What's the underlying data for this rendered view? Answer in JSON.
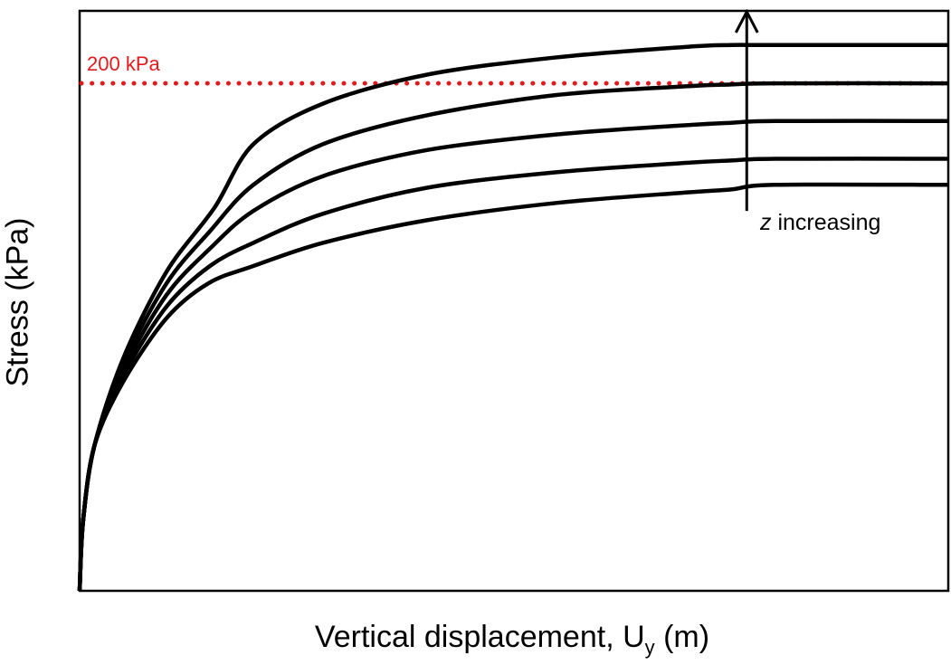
{
  "chart_data": {
    "type": "line",
    "title": "",
    "xlabel_main": "Vertical displacement, U",
    "xlabel_sub": "y",
    "xlabel_unit": " (m)",
    "ylabel": "Stress (kPa)",
    "xlim": [
      0,
      1
    ],
    "ylim": [
      0,
      1
    ],
    "grid": false,
    "legend": "none",
    "series_color": "#000000",
    "reference_line": {
      "label": "200 kPa",
      "y": 0.875,
      "color": "#e31a1c",
      "style": "dotted"
    },
    "annotation": {
      "emphasis": "z",
      "text": " increasing",
      "arrow_x": 0.768,
      "arrow_from_y": 0.655,
      "arrow_to_y": 1.0
    },
    "series": [
      {
        "x": [
          0,
          0.004,
          0.017,
          0.05,
          0.1,
          0.155,
          0.2,
          0.28,
          0.4,
          0.55,
          0.7,
          0.75,
          0.8,
          1.0
        ],
        "y": [
          0,
          0.12,
          0.25,
          0.4,
          0.55,
          0.66,
          0.77,
          0.84,
          0.89,
          0.92,
          0.938,
          0.941,
          0.941,
          0.941
        ]
      },
      {
        "x": [
          0,
          0.004,
          0.017,
          0.05,
          0.1,
          0.15,
          0.2,
          0.28,
          0.4,
          0.55,
          0.7,
          0.75,
          0.8,
          1.0
        ],
        "y": [
          0,
          0.12,
          0.25,
          0.39,
          0.53,
          0.62,
          0.7,
          0.77,
          0.82,
          0.855,
          0.87,
          0.873,
          0.875,
          0.875
        ]
      },
      {
        "x": [
          0,
          0.004,
          0.017,
          0.05,
          0.1,
          0.15,
          0.2,
          0.28,
          0.4,
          0.55,
          0.7,
          0.75,
          0.8,
          1.0
        ],
        "y": [
          0,
          0.12,
          0.25,
          0.38,
          0.51,
          0.59,
          0.655,
          0.715,
          0.76,
          0.787,
          0.803,
          0.807,
          0.81,
          0.81
        ]
      },
      {
        "x": [
          0,
          0.004,
          0.017,
          0.05,
          0.1,
          0.15,
          0.2,
          0.28,
          0.4,
          0.55,
          0.7,
          0.75,
          0.8,
          1.0
        ],
        "y": [
          0,
          0.12,
          0.25,
          0.37,
          0.49,
          0.56,
          0.6,
          0.65,
          0.695,
          0.722,
          0.738,
          0.742,
          0.745,
          0.745
        ]
      },
      {
        "x": [
          0,
          0.004,
          0.017,
          0.05,
          0.1,
          0.148,
          0.2,
          0.28,
          0.4,
          0.55,
          0.7,
          0.75,
          0.8,
          1.0
        ],
        "y": [
          0,
          0.12,
          0.25,
          0.36,
          0.47,
          0.53,
          0.56,
          0.6,
          0.639,
          0.669,
          0.687,
          0.692,
          0.7,
          0.7
        ]
      }
    ]
  }
}
